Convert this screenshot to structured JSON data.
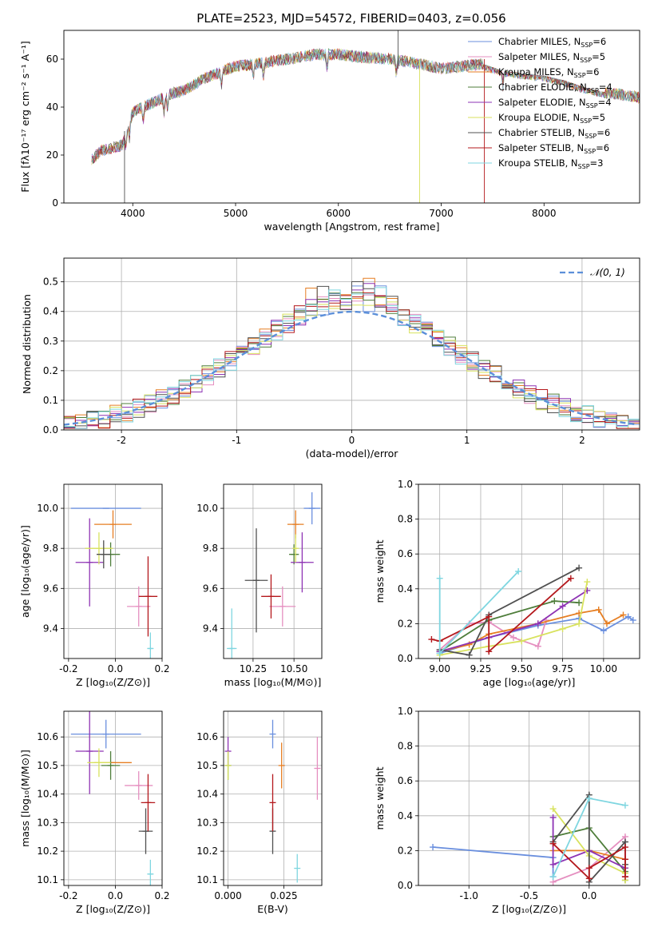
{
  "figure": {
    "title": "PLATE=2523, MJD=54572, FIBERID=0403, z=0.056"
  },
  "colors": {
    "series": [
      "#6a8fde",
      "#e58fc0",
      "#e67e22",
      "#4e7d3a",
      "#8e33b4",
      "#d8e25e",
      "#505050",
      "#b4181c",
      "#7fd6e0"
    ],
    "grid": "#b0b0b0",
    "normal_curve": "#5b8fd9"
  },
  "chart_data": [
    {
      "id": "spectrum",
      "type": "line",
      "xlabel": "wavelength [Angstrom, rest frame]",
      "ylabel": "Flux [fλ10⁻¹⁷ erg cm⁻² s⁻¹ A⁻¹]",
      "xlim": [
        3330,
        8930
      ],
      "ylim": [
        0,
        72
      ],
      "xticks": [
        4000,
        5000,
        6000,
        7000,
        8000
      ],
      "yticks": [
        0,
        20,
        40,
        60
      ],
      "grid": false,
      "legend": "upper right",
      "series": [
        {
          "name": "Chabrier MILES",
          "nssp": "6"
        },
        {
          "name": "Salpeter MILES",
          "nssp": "5"
        },
        {
          "name": "Kroupa MILES",
          "nssp": "6"
        },
        {
          "name": "Chabrier ELODIE",
          "nssp": "4"
        },
        {
          "name": "Salpeter ELODIE",
          "nssp": "4"
        },
        {
          "name": "Kroupa ELODIE",
          "nssp": "5"
        },
        {
          "name": "Chabrier STELIB",
          "nssp": "6"
        },
        {
          "name": "Salpeter STELIB",
          "nssp": "6"
        },
        {
          "name": "Kroupa STELIB",
          "nssp": "3"
        }
      ],
      "continuum": {
        "x": [
          3600,
          3700,
          3800,
          3900,
          4000,
          4100,
          4200,
          4300,
          4400,
          4500,
          4700,
          5000,
          5200,
          5500,
          5800,
          6000,
          6200,
          6500,
          6800,
          7000,
          7200,
          7400,
          7600,
          7800,
          8000,
          8200,
          8400,
          8600,
          8800,
          8930
        ],
        "y": [
          18,
          22,
          23,
          24,
          38,
          40,
          42,
          44,
          46,
          47,
          52,
          57,
          58,
          60,
          62,
          62,
          61,
          60,
          58,
          56,
          57,
          58,
          55,
          54,
          53,
          51,
          48,
          46,
          45,
          44
        ]
      }
    },
    {
      "id": "residuals",
      "type": "histogram",
      "xlabel": "(data-model)/error",
      "ylabel": "Normed distribution",
      "xlim": [
        -2.5,
        2.5
      ],
      "ylim": [
        0,
        0.58
      ],
      "xticks": [
        -2,
        -1,
        0,
        1,
        2
      ],
      "yticks": [
        0.0,
        0.1,
        0.2,
        0.3,
        0.4,
        0.5
      ],
      "grid": true,
      "legend_label": "𝒩(0, 1)",
      "legend": "upper right"
    },
    {
      "id": "z-vs-age",
      "type": "scatter",
      "xlabel": "Z [log₁₀(Z/Z⊙)]",
      "ylabel": "age  [log₁₀(age/yr)]",
      "xlim": [
        -0.22,
        0.2
      ],
      "ylim": [
        9.25,
        10.12
      ],
      "xticks": [
        -0.2,
        0.0,
        0.2
      ],
      "yticks": [
        9.4,
        9.6,
        9.8,
        10.0
      ],
      "grid": true,
      "points": [
        {
          "x": -0.04,
          "y": 10.0,
          "xerr": 0.15,
          "yerr": 0.0
        },
        {
          "x": 0.1,
          "y": 9.51,
          "xerr": 0.05,
          "yerr": 0.1
        },
        {
          "x": -0.01,
          "y": 9.92,
          "xerr": 0.08,
          "yerr": 0.07
        },
        {
          "x": -0.02,
          "y": 9.77,
          "xerr": 0.04,
          "yerr": 0.06
        },
        {
          "x": -0.11,
          "y": 9.73,
          "xerr": 0.06,
          "yerr": 0.22
        },
        {
          "x": -0.07,
          "y": 9.8,
          "xerr": 0.06,
          "yerr": 0.08
        },
        {
          "x": -0.05,
          "y": 9.77,
          "xerr": 0.03,
          "yerr": 0.07
        },
        {
          "x": 0.14,
          "y": 9.56,
          "xerr": 0.04,
          "yerr": 0.2
        },
        {
          "x": 0.15,
          "y": 9.3,
          "xerr": 0.01,
          "yerr": 0.08
        }
      ]
    },
    {
      "id": "mass-vs-age",
      "type": "scatter",
      "xlabel": "mass [log₁₀(M/M⊙)]",
      "ylabel": "",
      "xlim": [
        10.07,
        10.67
      ],
      "ylim": [
        9.25,
        10.12
      ],
      "xticks": [
        10.25,
        10.5
      ],
      "yticks": [
        9.4,
        9.6,
        9.8,
        10.0
      ],
      "grid": true,
      "points": [
        {
          "x": 10.61,
          "y": 10.0,
          "xerr": 0.05,
          "yerr": 0.08
        },
        {
          "x": 10.43,
          "y": 9.51,
          "xerr": 0.08,
          "yerr": 0.1
        },
        {
          "x": 10.51,
          "y": 9.92,
          "xerr": 0.05,
          "yerr": 0.07
        },
        {
          "x": 10.5,
          "y": 9.77,
          "xerr": 0.03,
          "yerr": 0.05
        },
        {
          "x": 10.55,
          "y": 9.73,
          "xerr": 0.07,
          "yerr": 0.15
        },
        {
          "x": 10.51,
          "y": 9.8,
          "xerr": 0.01,
          "yerr": 0.07
        },
        {
          "x": 10.27,
          "y": 9.64,
          "xerr": 0.07,
          "yerr": 0.26
        },
        {
          "x": 10.36,
          "y": 9.56,
          "xerr": 0.06,
          "yerr": 0.11
        },
        {
          "x": 10.12,
          "y": 9.3,
          "xerr": 0.03,
          "yerr": 0.2
        }
      ]
    },
    {
      "id": "age-vs-weight",
      "type": "line",
      "xlabel": "age  [log₁₀(age/yr)]",
      "ylabel": "mass weight",
      "xlim": [
        8.87,
        10.22
      ],
      "ylim": [
        0,
        1.0
      ],
      "xticks": [
        9.0,
        9.25,
        9.5,
        9.75,
        10.0
      ],
      "yticks": [
        0.0,
        0.2,
        0.4,
        0.6,
        0.8,
        1.0
      ],
      "grid": true,
      "series": [
        {
          "x": [
            9.0,
            9.3,
            9.6,
            9.85,
            10.0,
            10.15,
            10.18
          ],
          "y": [
            0.03,
            0.12,
            0.19,
            0.23,
            0.16,
            0.24,
            0.22
          ]
        },
        {
          "x": [
            9.0,
            9.18,
            9.3,
            9.45,
            9.6,
            9.65
          ],
          "y": [
            0.05,
            0.2,
            0.21,
            0.12,
            0.07,
            0.22
          ]
        },
        {
          "x": [
            9.0,
            9.18,
            9.3,
            9.6,
            9.85,
            9.97,
            10.02,
            10.12
          ],
          "y": [
            0.04,
            0.08,
            0.14,
            0.2,
            0.26,
            0.28,
            0.2,
            0.25
          ]
        },
        {
          "x": [
            9.0,
            9.3,
            9.7,
            9.85
          ],
          "y": [
            0.04,
            0.22,
            0.33,
            0.32
          ]
        },
        {
          "x": [
            9.0,
            9.3,
            9.6,
            9.75,
            9.9
          ],
          "y": [
            0.04,
            0.12,
            0.2,
            0.3,
            0.39
          ]
        },
        {
          "x": [
            9.0,
            9.3,
            9.5,
            9.75,
            9.85,
            9.9
          ],
          "y": [
            0.02,
            0.07,
            0.1,
            0.17,
            0.2,
            0.44
          ]
        },
        {
          "x": [
            9.0,
            9.18,
            9.3,
            9.85
          ],
          "y": [
            0.05,
            0.02,
            0.25,
            0.52
          ]
        },
        {
          "x": [
            8.95,
            9.0,
            9.3,
            9.3,
            9.8
          ],
          "y": [
            0.11,
            0.1,
            0.24,
            0.04,
            0.46
          ]
        },
        {
          "x": [
            9.0,
            9.0,
            9.48
          ],
          "y": [
            0.46,
            0.03,
            0.5
          ]
        }
      ]
    },
    {
      "id": "z-vs-mass",
      "type": "scatter",
      "xlabel": "Z [log₁₀(Z/Z⊙)]",
      "ylabel": "mass [log₁₀(M/M⊙)]",
      "xlim": [
        -0.22,
        0.2
      ],
      "ylim": [
        10.08,
        10.69
      ],
      "xticks": [
        -0.2,
        0.0,
        0.2
      ],
      "yticks": [
        10.1,
        10.2,
        10.3,
        10.4,
        10.5,
        10.6
      ],
      "grid": true,
      "points": [
        {
          "x": -0.04,
          "y": 10.61,
          "xerr": 0.15,
          "yerr": 0.05
        },
        {
          "x": 0.1,
          "y": 10.43,
          "xerr": 0.06,
          "yerr": 0.05
        },
        {
          "x": -0.01,
          "y": 10.51,
          "xerr": 0.08,
          "yerr": 0.0
        },
        {
          "x": -0.02,
          "y": 10.5,
          "xerr": 0.04,
          "yerr": 0.05
        },
        {
          "x": -0.11,
          "y": 10.55,
          "xerr": 0.06,
          "yerr": 0.15
        },
        {
          "x": -0.07,
          "y": 10.51,
          "xerr": 0.05,
          "yerr": 0.05
        },
        {
          "x": 0.13,
          "y": 10.27,
          "xerr": 0.03,
          "yerr": 0.08
        },
        {
          "x": 0.14,
          "y": 10.37,
          "xerr": 0.03,
          "yerr": 0.1
        },
        {
          "x": 0.15,
          "y": 10.12,
          "xerr": 0.01,
          "yerr": 0.05
        }
      ]
    },
    {
      "id": "ebv-vs-mass",
      "type": "scatter",
      "xlabel": "E(B-V)",
      "ylabel": "",
      "xlim": [
        -0.002,
        0.042
      ],
      "ylim": [
        10.08,
        10.69
      ],
      "xticks": [
        0.0,
        0.025
      ],
      "yticks": [
        10.1,
        10.2,
        10.3,
        10.4,
        10.5,
        10.6
      ],
      "grid": true,
      "points": [
        {
          "x": 0.02,
          "y": 10.61,
          "xerr": 0.0,
          "yerr": 0.05
        },
        {
          "x": 0.04,
          "y": 10.49,
          "xerr": 0.0,
          "yerr": 0.11
        },
        {
          "x": 0.024,
          "y": 10.5,
          "xerr": 0.0,
          "yerr": 0.08
        },
        {
          "x": 0.0,
          "y": 10.5,
          "xerr": 0.0,
          "yerr": 0.05
        },
        {
          "x": 0.0,
          "y": 10.55,
          "xerr": 0.0,
          "yerr": 0.05
        },
        {
          "x": 0.0,
          "y": 10.5,
          "xerr": 0.0,
          "yerr": 0.05
        },
        {
          "x": 0.02,
          "y": 10.27,
          "xerr": 0.0,
          "yerr": 0.08
        },
        {
          "x": 0.02,
          "y": 10.37,
          "xerr": 0.0,
          "yerr": 0.1
        },
        {
          "x": 0.031,
          "y": 10.14,
          "xerr": 0.0,
          "yerr": 0.05
        }
      ]
    },
    {
      "id": "z-vs-weight",
      "type": "line",
      "xlabel": "Z [log₁₀(Z/Z⊙)]",
      "ylabel": "mass weight",
      "xlim": [
        -1.42,
        0.42
      ],
      "ylim": [
        0,
        1.0
      ],
      "xticks": [
        -1.0,
        -0.5,
        0.0
      ],
      "yticks": [
        0.0,
        0.2,
        0.4,
        0.6,
        0.8,
        1.0
      ],
      "grid": true,
      "series": [
        {
          "x": [
            -1.3,
            -0.3,
            -0.3
          ],
          "y": [
            0.22,
            0.16,
            0.05
          ]
        },
        {
          "x": [
            -0.3,
            0.0,
            0.3,
            0.3
          ],
          "y": [
            0.02,
            0.1,
            0.28,
            0.05
          ]
        },
        {
          "x": [
            -0.3,
            0.0,
            0.3,
            0.3,
            0.3
          ],
          "y": [
            0.2,
            0.2,
            0.15,
            0.1,
            0.05
          ]
        },
        {
          "x": [
            -0.3,
            0.0,
            0.3,
            0.3
          ],
          "y": [
            0.28,
            0.33,
            0.08,
            0.03
          ]
        },
        {
          "x": [
            -0.3,
            -0.3,
            0.0,
            0.3,
            0.3
          ],
          "y": [
            0.39,
            0.12,
            0.2,
            0.1,
            0.05
          ]
        },
        {
          "x": [
            -0.3,
            0.0,
            0.3,
            0.3
          ],
          "y": [
            0.44,
            0.17,
            0.07,
            0.03
          ]
        },
        {
          "x": [
            -0.3,
            0.0,
            0.0,
            0.3,
            0.3
          ],
          "y": [
            0.25,
            0.52,
            0.02,
            0.25,
            0.12
          ]
        },
        {
          "x": [
            -0.3,
            0.0,
            0.0,
            0.3,
            0.3,
            0.3
          ],
          "y": [
            0.24,
            0.04,
            0.1,
            0.22,
            0.15,
            0.05
          ]
        },
        {
          "x": [
            -0.3,
            0.0,
            0.3
          ],
          "y": [
            0.05,
            0.5,
            0.46
          ]
        }
      ]
    }
  ]
}
